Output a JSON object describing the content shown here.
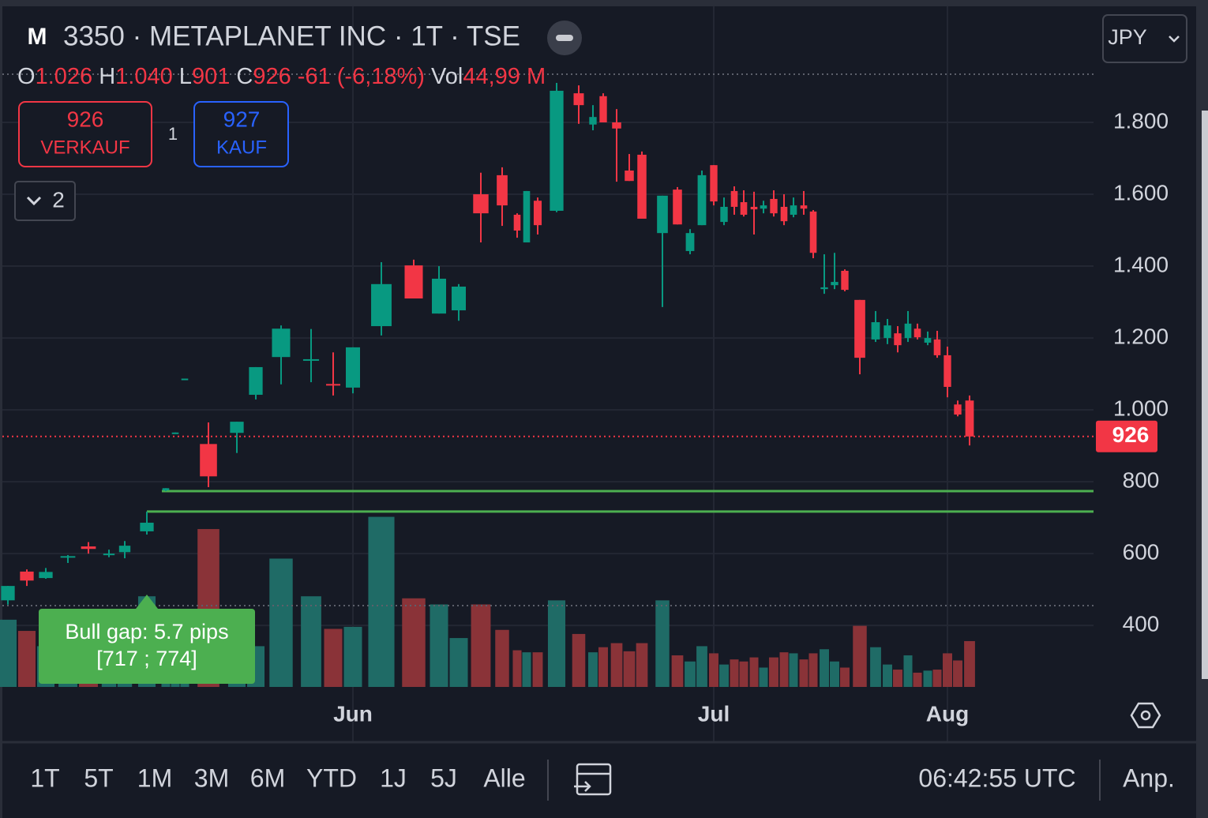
{
  "header": {
    "symbol_icon": "M",
    "title": "3350 · METAPLANET INC · 1T · TSE",
    "currency": "JPY"
  },
  "legend": {
    "open_label": "O",
    "open": "1.026",
    "high_label": "H",
    "high": "1.040",
    "low_label": "L",
    "low": "901",
    "close_label": "C",
    "close": "926",
    "change": "-61 (-6,18%)",
    "volume_label": "Vol",
    "volume": "44,99 M"
  },
  "trade": {
    "sell_price": "926",
    "sell_label": "VERKAUF",
    "spread": "1",
    "buy_price": "927",
    "buy_label": "KAUF"
  },
  "indicators_count": "2",
  "chart_data": {
    "type": "candlestick",
    "categories": [
      null,
      null,
      null,
      null,
      null,
      null,
      null,
      null,
      null,
      null,
      null,
      null,
      null,
      null,
      null,
      null,
      null,
      "Jun",
      null,
      null,
      null,
      null,
      null,
      null,
      null,
      null,
      null,
      null,
      null,
      null,
      null,
      null,
      null,
      null,
      null,
      null,
      null,
      null,
      "Jul",
      null,
      null,
      null,
      null,
      null,
      null,
      null,
      null,
      null,
      null,
      null,
      null,
      null,
      null,
      null,
      null,
      null,
      null,
      null,
      null,
      null,
      "Aug",
      null,
      null
    ],
    "open": [
      470,
      550,
      532,
      589,
      620,
      597,
      604,
      662,
      776,
      934,
      1085,
      905,
      936,
      1042,
      1147,
      1139,
      1072,
      1062,
      1233,
      1402,
      1268,
      1277,
      1600,
      1653,
      1543,
      1466,
      1582,
      1554,
      1881,
      1794,
      1873,
      1800,
      1666,
      1710,
      1492,
      1613,
      1442,
      1514,
      1681,
      1523,
      1609,
      1578,
      1565,
      1560,
      1587,
      1565,
      1543,
      1569,
      1552,
      1336,
      1347,
      1387,
      1306,
      1196,
      1200,
      1213,
      1200,
      1226,
      1187,
      1196,
      1152,
      1015,
      1026
    ],
    "high": [
      510,
      556,
      560,
      596,
      632,
      611,
      635,
      717,
      782,
      937,
      1087,
      965,
      967,
      1119,
      1235,
      1225,
      1160,
      1174,
      1411,
      1418,
      1400,
      1350,
      1660,
      1675,
      1547,
      1609,
      1591,
      1910,
      1903,
      1848,
      1881,
      1837,
      1712,
      1719,
      1596,
      1620,
      1503,
      1666,
      1681,
      1591,
      1622,
      1611,
      1607,
      1582,
      1611,
      1600,
      1591,
      1609,
      1556,
      1433,
      1437,
      1391,
      1306,
      1275,
      1253,
      1233,
      1275,
      1240,
      1218,
      1220,
      1176,
      1026,
      1040
    ],
    "low": [
      458,
      510,
      530,
      574,
      600,
      590,
      587,
      653,
      774,
      934,
      1085,
      785,
      880,
      1029,
      1071,
      1077,
      1040,
      1046,
      1207,
      1310,
      1268,
      1248,
      1466,
      1512,
      1479,
      1466,
      1488,
      1550,
      1796,
      1778,
      1800,
      1635,
      1637,
      1532,
      1286,
      1516,
      1433,
      1514,
      1569,
      1514,
      1543,
      1538,
      1488,
      1547,
      1538,
      1514,
      1536,
      1543,
      1422,
      1323,
      1336,
      1330,
      1099,
      1189,
      1183,
      1160,
      1189,
      1196,
      1180,
      1145,
      1035,
      982,
      901
    ],
    "close": [
      510,
      525,
      549,
      593,
      613,
      600,
      622,
      686,
      782,
      937,
      1087,
      815,
      967,
      1119,
      1226,
      1141,
      1068,
      1174,
      1350,
      1310,
      1365,
      1343,
      1547,
      1569,
      1499,
      1609,
      1514,
      1888,
      1848,
      1815,
      1800,
      1783,
      1637,
      1532,
      1596,
      1516,
      1492,
      1653,
      1580,
      1565,
      1565,
      1543,
      1558,
      1569,
      1547,
      1525,
      1569,
      1560,
      1437,
      1341,
      1356,
      1334,
      1145,
      1244,
      1235,
      1180,
      1240,
      1202,
      1200,
      1152,
      1064,
      987,
      926
    ],
    "volume": [
      66,
      55,
      40,
      30,
      40,
      35,
      30,
      89,
      20,
      15,
      15,
      155,
      54,
      40,
      126,
      89,
      57,
      59,
      167,
      87,
      81,
      48,
      81,
      56,
      36,
      34,
      34,
      85,
      52,
      34,
      39,
      43,
      35,
      43,
      85,
      31,
      25,
      40,
      33,
      22,
      27,
      25,
      29,
      19,
      29,
      34,
      33,
      27,
      33,
      37,
      25,
      19,
      60,
      39,
      22,
      17,
      31,
      14,
      16,
      17,
      33,
      26,
      44.99
    ],
    "ylim": [
      229,
      2123
    ],
    "yticks": [
      {
        "value": 1800,
        "label": "1.800"
      },
      {
        "value": 1600,
        "label": "1.600"
      },
      {
        "value": 1400,
        "label": "1.400"
      },
      {
        "value": 1200,
        "label": "1.200"
      },
      {
        "value": 1000,
        "label": "1.000"
      },
      800,
      600,
      400
    ],
    "grid": true,
    "up_color": "#089981",
    "down_color": "#f23645",
    "volume_up_color": "#1f6b66",
    "volume_down_color": "#8a3338",
    "gap": {
      "low": 717,
      "high": 774,
      "color": "#4caf50",
      "label": "Bull gap: 5.7 pips",
      "range_label": "[717 ; 774]"
    }
  },
  "toolbar": {
    "ranges": [
      "1T",
      "5T",
      "1M",
      "3M",
      "6M",
      "YTD",
      "1J",
      "5J",
      "Alle"
    ],
    "time": "06:42:55 UTC",
    "adjust": "Anp."
  }
}
